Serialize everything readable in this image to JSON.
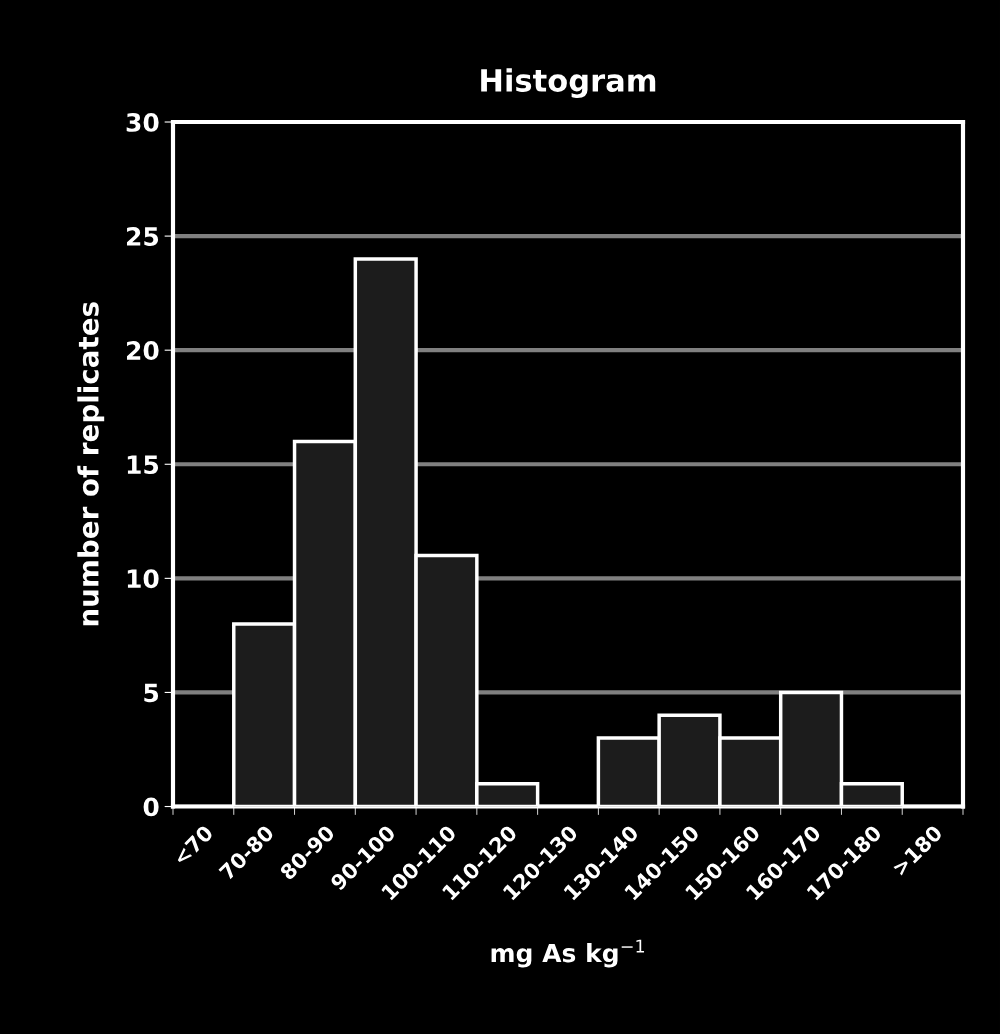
{
  "chart_data": {
    "type": "bar",
    "title": "Histogram",
    "xlabel": "mg As kg$^{−1}$",
    "ylabel": "number of replicates",
    "categories": [
      "<70",
      "70-80",
      "80-90",
      "90-100",
      "100-110",
      "110-120",
      "120-130",
      "130-140",
      "140-150",
      "150-160",
      "160-170",
      "170-180",
      ">180"
    ],
    "values": [
      0,
      8,
      16,
      24,
      11,
      1,
      0,
      3,
      4,
      3,
      5,
      1,
      0
    ],
    "color": "#1c1c1c",
    "ylim": [
      0,
      30
    ],
    "yticks": [
      0,
      5,
      10,
      15,
      20,
      25,
      30
    ],
    "grid": "y"
  }
}
